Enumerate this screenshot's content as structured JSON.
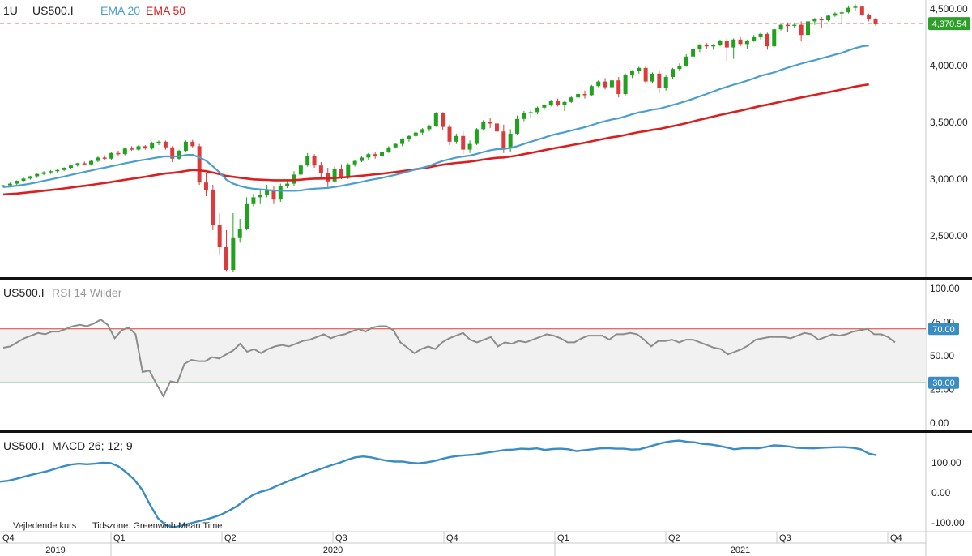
{
  "header": {
    "interval": "1U",
    "symbol": "US500.I",
    "ema20_label": "EMA 20",
    "ema50_label": "EMA 50"
  },
  "colors": {
    "up": "#22a11f",
    "down": "#dd3b3b",
    "ema20": "#4a9fd0",
    "ema50": "#d91f1f",
    "rsi": "#8c8c8c",
    "macd": "#3a8cc4",
    "overbought": "#dd3b3b",
    "oversold": "#22a11f",
    "badge_blue": "#3a8cc4",
    "price_badge": "#2ea02a"
  },
  "rsi_panel": {
    "symbol": "US500.I",
    "indicator": "RSI 14 Wilder"
  },
  "macd_panel": {
    "symbol": "US500.I",
    "indicator": "MACD 26; 12; 9"
  },
  "footer": {
    "note_left": "Vejledende kurs",
    "note_right": "Tidszone: Greenwich Mean Time",
    "quarters": [
      "Q4",
      "Q1",
      "Q2",
      "Q3",
      "Q4",
      "Q1",
      "Q2",
      "Q3",
      "Q4"
    ],
    "years": [
      "2019",
      "2020",
      "2021"
    ]
  },
  "chart_data": [
    {
      "type": "candlestick",
      "title": "US500.I",
      "timeframe": "1U",
      "ylim": [
        2150,
        4550
      ],
      "yticks": [
        "2,500.00",
        "3,000.00",
        "3,500.00",
        "4,000.00",
        "4,500.00"
      ],
      "last_price": "4,370.54",
      "last_price_value": 4370.54,
      "candles": [
        [
          2940,
          2950,
          2925,
          2945
        ],
        [
          2945,
          2970,
          2935,
          2960
        ],
        [
          2960,
          2990,
          2950,
          2985
        ],
        [
          2985,
          3015,
          2975,
          3005
        ],
        [
          3005,
          3030,
          2995,
          3025
        ],
        [
          3025,
          3050,
          3010,
          3045
        ],
        [
          3045,
          3070,
          3035,
          3060
        ],
        [
          3060,
          3080,
          3045,
          3070
        ],
        [
          3070,
          3090,
          3055,
          3080
        ],
        [
          3080,
          3105,
          3070,
          3100
        ],
        [
          3100,
          3125,
          3090,
          3120
        ],
        [
          3120,
          3145,
          3110,
          3140
        ],
        [
          3140,
          3155,
          3120,
          3130
        ],
        [
          3130,
          3170,
          3120,
          3160
        ],
        [
          3160,
          3200,
          3150,
          3190
        ],
        [
          3190,
          3210,
          3170,
          3180
        ],
        [
          3180,
          3240,
          3170,
          3230
        ],
        [
          3230,
          3250,
          3205,
          3220
        ],
        [
          3220,
          3280,
          3210,
          3270
        ],
        [
          3270,
          3290,
          3250,
          3260
        ],
        [
          3260,
          3300,
          3250,
          3290
        ],
        [
          3290,
          3300,
          3260,
          3270
        ],
        [
          3270,
          3330,
          3260,
          3320
        ],
        [
          3320,
          3340,
          3300,
          3330
        ],
        [
          3330,
          3340,
          3260,
          3280
        ],
        [
          3280,
          3290,
          3150,
          3180
        ],
        [
          3180,
          3260,
          3170,
          3250
        ],
        [
          3250,
          3340,
          3240,
          3330
        ],
        [
          3330,
          3345,
          3280,
          3290
        ],
        [
          3290,
          3310,
          2950,
          2970
        ],
        [
          2970,
          3050,
          2850,
          2900
        ],
        [
          2900,
          2950,
          2550,
          2600
        ],
        [
          2600,
          2700,
          2330,
          2400
        ],
        [
          2400,
          2550,
          2190,
          2200
        ],
        [
          2200,
          2700,
          2180,
          2480
        ],
        [
          2480,
          2650,
          2440,
          2560
        ],
        [
          2560,
          2840,
          2550,
          2780
        ],
        [
          2780,
          2870,
          2760,
          2840
        ],
        [
          2840,
          2910,
          2780,
          2860
        ],
        [
          2860,
          2950,
          2840,
          2900
        ],
        [
          2900,
          2940,
          2780,
          2820
        ],
        [
          2820,
          2960,
          2800,
          2940
        ],
        [
          2940,
          3000,
          2920,
          2960
        ],
        [
          2960,
          3070,
          2940,
          3040
        ],
        [
          3040,
          3140,
          3030,
          3120
        ],
        [
          3120,
          3230,
          3110,
          3200
        ],
        [
          3200,
          3220,
          3100,
          3120
        ],
        [
          3120,
          3150,
          3010,
          3050
        ],
        [
          3050,
          3100,
          2930,
          2980
        ],
        [
          2980,
          3110,
          2970,
          3090
        ],
        [
          3090,
          3130,
          3000,
          3010
        ],
        [
          3010,
          3140,
          3000,
          3130
        ],
        [
          3130,
          3170,
          3110,
          3160
        ],
        [
          3160,
          3200,
          3150,
          3190
        ],
        [
          3190,
          3230,
          3170,
          3220
        ],
        [
          3220,
          3240,
          3180,
          3200
        ],
        [
          3200,
          3260,
          3190,
          3240
        ],
        [
          3240,
          3290,
          3230,
          3280
        ],
        [
          3280,
          3320,
          3270,
          3310
        ],
        [
          3310,
          3360,
          3290,
          3350
        ],
        [
          3350,
          3390,
          3330,
          3380
        ],
        [
          3380,
          3420,
          3370,
          3410
        ],
        [
          3410,
          3450,
          3390,
          3440
        ],
        [
          3440,
          3480,
          3420,
          3470
        ],
        [
          3470,
          3590,
          3460,
          3580
        ],
        [
          3580,
          3590,
          3430,
          3460
        ],
        [
          3460,
          3480,
          3300,
          3330
        ],
        [
          3330,
          3400,
          3310,
          3380
        ],
        [
          3380,
          3420,
          3220,
          3260
        ],
        [
          3260,
          3340,
          3230,
          3310
        ],
        [
          3310,
          3450,
          3300,
          3440
        ],
        [
          3440,
          3520,
          3430,
          3500
        ],
        [
          3500,
          3540,
          3450,
          3490
        ],
        [
          3490,
          3520,
          3400,
          3420
        ],
        [
          3420,
          3480,
          3230,
          3270
        ],
        [
          3270,
          3440,
          3240,
          3400
        ],
        [
          3400,
          3560,
          3390,
          3530
        ],
        [
          3530,
          3600,
          3510,
          3580
        ],
        [
          3580,
          3610,
          3540,
          3590
        ],
        [
          3590,
          3640,
          3570,
          3630
        ],
        [
          3630,
          3660,
          3610,
          3650
        ],
        [
          3650,
          3700,
          3640,
          3690
        ],
        [
          3690,
          3710,
          3640,
          3650
        ],
        [
          3650,
          3690,
          3600,
          3680
        ],
        [
          3680,
          3730,
          3670,
          3720
        ],
        [
          3720,
          3760,
          3710,
          3750
        ],
        [
          3750,
          3780,
          3710,
          3740
        ],
        [
          3740,
          3830,
          3730,
          3820
        ],
        [
          3820,
          3870,
          3810,
          3860
        ],
        [
          3860,
          3890,
          3790,
          3810
        ],
        [
          3810,
          3880,
          3800,
          3870
        ],
        [
          3870,
          3900,
          3720,
          3750
        ],
        [
          3750,
          3930,
          3740,
          3920
        ],
        [
          3920,
          3960,
          3890,
          3950
        ],
        [
          3950,
          3990,
          3930,
          3980
        ],
        [
          3980,
          3990,
          3840,
          3860
        ],
        [
          3860,
          3940,
          3850,
          3930
        ],
        [
          3930,
          3950,
          3760,
          3800
        ],
        [
          3800,
          3920,
          3780,
          3900
        ],
        [
          3900,
          3980,
          3880,
          3970
        ],
        [
          3970,
          4020,
          3950,
          4000
        ],
        [
          4000,
          4100,
          3990,
          4080
        ],
        [
          4080,
          4170,
          4070,
          4150
        ],
        [
          4150,
          4190,
          4120,
          4180
        ],
        [
          4180,
          4200,
          4150,
          4170
        ],
        [
          4170,
          4190,
          4140,
          4180
        ],
        [
          4180,
          4230,
          4170,
          4220
        ],
        [
          4220,
          4240,
          4040,
          4160
        ],
        [
          4160,
          4240,
          4060,
          4230
        ],
        [
          4230,
          4250,
          4170,
          4190
        ],
        [
          4190,
          4230,
          4150,
          4220
        ],
        [
          4220,
          4270,
          4210,
          4250
        ],
        [
          4250,
          4290,
          4230,
          4280
        ],
        [
          4280,
          4290,
          4140,
          4170
        ],
        [
          4170,
          4330,
          4160,
          4320
        ],
        [
          4320,
          4370,
          4310,
          4360
        ],
        [
          4360,
          4380,
          4300,
          4350
        ],
        [
          4350,
          4380,
          4330,
          4360
        ],
        [
          4360,
          4390,
          4220,
          4270
        ],
        [
          4270,
          4400,
          4260,
          4390
        ],
        [
          4390,
          4420,
          4360,
          4410
        ],
        [
          4410,
          4430,
          4330,
          4400
        ],
        [
          4400,
          4450,
          4390,
          4440
        ],
        [
          4440,
          4470,
          4430,
          4460
        ],
        [
          4460,
          4490,
          4370,
          4470
        ],
        [
          4470,
          4530,
          4460,
          4510
        ],
        [
          4510,
          4540,
          4480,
          4520
        ],
        [
          4520,
          4530,
          4440,
          4450
        ],
        [
          4450,
          4460,
          4390,
          4410
        ],
        [
          4410,
          4420,
          4350,
          4370
        ]
      ],
      "ema20": [
        2930,
        2935,
        2942,
        2950,
        2960,
        2972,
        2985,
        2997,
        3010,
        3023,
        3037,
        3051,
        3063,
        3076,
        3090,
        3101,
        3114,
        3126,
        3140,
        3151,
        3163,
        3172,
        3183,
        3193,
        3201,
        3199,
        3201,
        3213,
        3214,
        3192,
        3162,
        3113,
        3058,
        2994,
        2960,
        2940,
        2925,
        2915,
        2910,
        2905,
        2900,
        2898,
        2897,
        2897,
        2900,
        2910,
        2915,
        2919,
        2922,
        2931,
        2941,
        2952,
        2964,
        2976,
        2990,
        3001,
        3011,
        3024,
        3038,
        3053,
        3069,
        3085,
        3100,
        3116,
        3140,
        3160,
        3176,
        3190,
        3199,
        3207,
        3222,
        3239,
        3254,
        3264,
        3266,
        3275,
        3290,
        3310,
        3329,
        3348,
        3366,
        3385,
        3400,
        3413,
        3428,
        3443,
        3457,
        3475,
        3495,
        3510,
        3526,
        3536,
        3553,
        3571,
        3588,
        3598,
        3612,
        3620,
        3636,
        3653,
        3670,
        3688,
        3708,
        3729,
        3750,
        3772,
        3794,
        3813,
        3832,
        3848,
        3867,
        3888,
        3910,
        3924,
        3941,
        3962,
        3982,
        4000,
        4018,
        4034,
        4048,
        4064,
        4080,
        4097,
        4112,
        4134,
        4155,
        4170,
        4178
      ],
      "ema50": [
        2865,
        2869,
        2873,
        2879,
        2885,
        2891,
        2898,
        2904,
        2911,
        2918,
        2926,
        2934,
        2941,
        2949,
        2958,
        2966,
        2975,
        2984,
        2994,
        3003,
        3012,
        3021,
        3031,
        3041,
        3050,
        3055,
        3062,
        3072,
        3081,
        3077,
        3070,
        3058,
        3044,
        3028,
        3020,
        3012,
        3005,
        2998,
        2995,
        2993,
        2990,
        2990,
        2990,
        2991,
        2995,
        3001,
        3004,
        3005,
        3006,
        3010,
        3014,
        3019,
        3024,
        3030,
        3036,
        3042,
        3048,
        3055,
        3062,
        3070,
        3078,
        3087,
        3096,
        3105,
        3117,
        3127,
        3135,
        3143,
        3148,
        3154,
        3163,
        3172,
        3181,
        3188,
        3191,
        3199,
        3208,
        3220,
        3231,
        3243,
        3255,
        3267,
        3278,
        3288,
        3299,
        3310,
        3321,
        3333,
        3346,
        3357,
        3369,
        3377,
        3389,
        3402,
        3414,
        3423,
        3434,
        3442,
        3454,
        3467,
        3479,
        3493,
        3508,
        3523,
        3537,
        3551,
        3565,
        3578,
        3591,
        3603,
        3617,
        3631,
        3645,
        3656,
        3669,
        3682,
        3695,
        3707,
        3719,
        3731,
        3742,
        3754,
        3766,
        3778,
        3790,
        3803,
        3816,
        3826,
        3834
      ]
    },
    {
      "type": "line",
      "title": "RSI 14 Wilder",
      "ylim": [
        0,
        100
      ],
      "yticks": [
        "0.00",
        "25.00",
        "50.00",
        "75.00",
        "100.00"
      ],
      "overbought": 70,
      "oversold": 30,
      "overbought_label": "70.00",
      "oversold_label": "30.00",
      "values": [
        56,
        57,
        60,
        63,
        65,
        67,
        66,
        68,
        68,
        70,
        72,
        73,
        72,
        74,
        77,
        73,
        63,
        69,
        71,
        66,
        38,
        39,
        29,
        20,
        31,
        30,
        44,
        47,
        46,
        46,
        49,
        48,
        51,
        54,
        59,
        53,
        55,
        52,
        55,
        57,
        58,
        57,
        59,
        61,
        62,
        64,
        66,
        63,
        65,
        66,
        68,
        70,
        68,
        71,
        72,
        72,
        69,
        60,
        56,
        52,
        55,
        57,
        55,
        60,
        63,
        65,
        67,
        62,
        60,
        62,
        64,
        57,
        60,
        59,
        61,
        60,
        62,
        64,
        66,
        65,
        63,
        60,
        60,
        63,
        65,
        65,
        65,
        62,
        66,
        66,
        67,
        66,
        62,
        57,
        61,
        61,
        62,
        60,
        62,
        62,
        60,
        58,
        56,
        55,
        51,
        53,
        55,
        58,
        62,
        63,
        64,
        64,
        64,
        63,
        65,
        67,
        66,
        62,
        64,
        66,
        65,
        66,
        68,
        69,
        70,
        66,
        66,
        64,
        60
      ],
      "x_index_note": "RSI values index order left to right"
    },
    {
      "type": "line",
      "title": "MACD 26; 12; 9",
      "ylim": [
        -130,
        200
      ],
      "yticks": [
        "-100.00",
        "0.00",
        "100.00"
      ],
      "values": [
        37,
        40,
        46,
        53,
        60,
        66,
        72,
        80,
        88,
        94,
        97,
        95,
        97,
        100,
        99,
        88,
        68,
        44,
        10,
        -40,
        -85,
        -108,
        -115,
        -110,
        -103,
        -96,
        -90,
        -82,
        -73,
        -60,
        -45,
        -25,
        -8,
        3,
        10,
        22,
        33,
        44,
        54,
        65,
        74,
        83,
        92,
        100,
        110,
        118,
        121,
        118,
        112,
        107,
        104,
        104,
        100,
        98,
        101,
        106,
        113,
        119,
        123,
        125,
        127,
        131,
        135,
        139,
        143,
        144,
        147,
        146,
        148,
        143,
        146,
        147,
        145,
        139,
        142,
        145,
        148,
        149,
        147,
        147,
        144,
        145,
        152,
        160,
        167,
        172,
        174,
        170,
        168,
        163,
        161,
        157,
        151,
        145,
        148,
        149,
        148,
        153,
        158,
        157,
        154,
        150,
        149,
        148,
        150,
        151,
        152,
        152,
        150,
        145,
        131,
        125
      ]
    }
  ]
}
